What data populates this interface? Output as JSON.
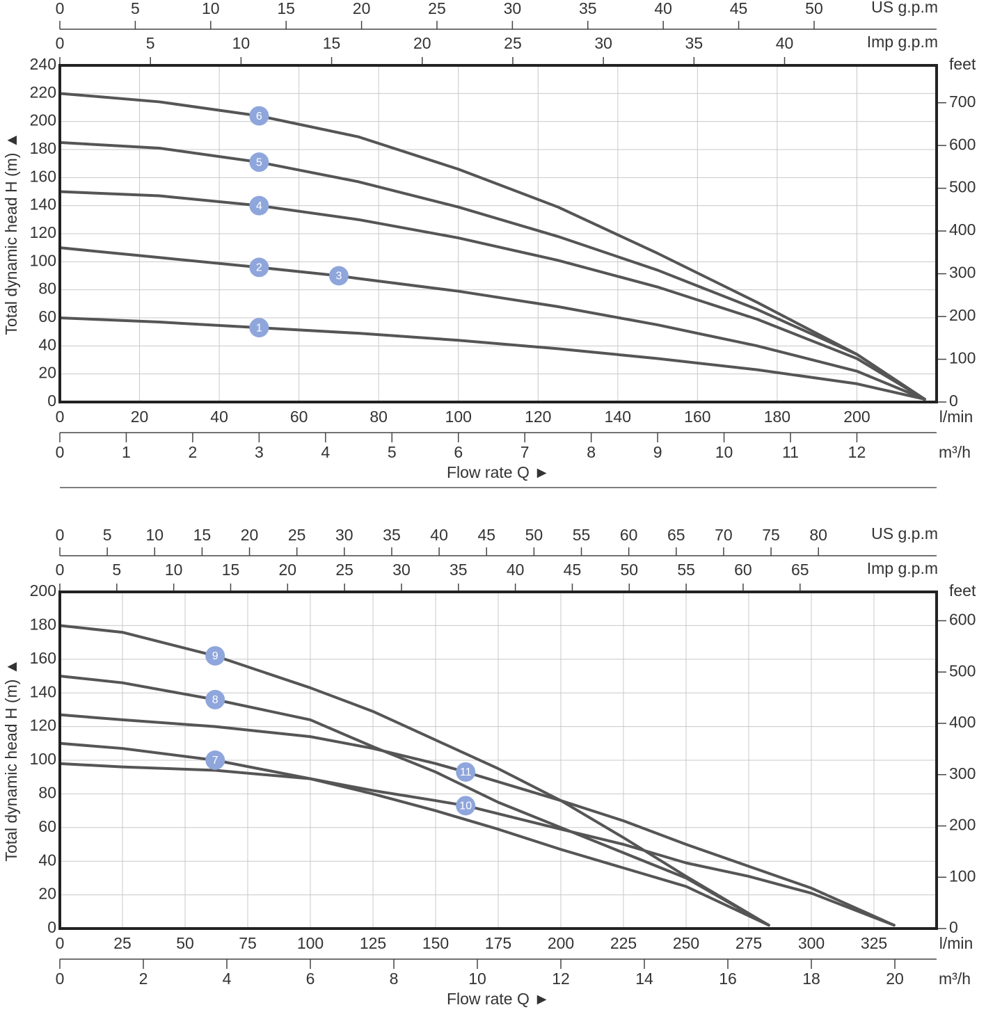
{
  "chart_data": [
    {
      "type": "line",
      "y_label": "Total dynamic head H (m) ▲",
      "x_label": "Flow rate Q ►",
      "xlim": [
        0,
        220
      ],
      "xticks": [
        0,
        20,
        40,
        60,
        80,
        100,
        120,
        140,
        160,
        180,
        200
      ],
      "x_unit": "l/min",
      "x2lim": [
        0,
        13.2
      ],
      "x2ticks": [
        0,
        1,
        2,
        3,
        4,
        5,
        6,
        7,
        8,
        9,
        10,
        11,
        12
      ],
      "x2_unit": "m³/h",
      "x3lim": [
        0,
        58.12
      ],
      "x3ticks": [
        0,
        5,
        10,
        15,
        20,
        25,
        30,
        35,
        40,
        45,
        50
      ],
      "x3_unit": "US g.p.m",
      "x4lim": [
        0,
        48.39
      ],
      "x4ticks": [
        0,
        5,
        10,
        15,
        20,
        25,
        30,
        35,
        40
      ],
      "x4_unit": "Imp g.p.m",
      "ylim": [
        0,
        240
      ],
      "yticks": [
        0,
        20,
        40,
        60,
        80,
        100,
        120,
        140,
        160,
        180,
        200,
        220,
        240
      ],
      "y2lim": [
        0,
        787.4
      ],
      "y2ticks": [
        0,
        100,
        200,
        300,
        400,
        500,
        600,
        700
      ],
      "y2_unit": "feet",
      "grid": true,
      "marker_color": "#8fa6dc",
      "series": [
        {
          "color": "#555555",
          "x": [
            0,
            25,
            50,
            75,
            100,
            125,
            150,
            175,
            200,
            217
          ],
          "values": [
            60,
            57,
            53,
            49,
            44,
            38,
            31,
            23,
            13,
            2
          ]
        },
        {
          "color": "#555555",
          "x": [
            0,
            25,
            50,
            70,
            75,
            100,
            125,
            150,
            175,
            200,
            217
          ],
          "values": [
            110,
            103,
            96,
            90,
            88,
            79,
            68,
            55,
            40,
            22,
            2
          ]
        },
        {
          "color": "#555555",
          "x": [
            0,
            25,
            50,
            75,
            100,
            125,
            150,
            175,
            200,
            217
          ],
          "values": [
            150,
            147,
            140,
            130,
            117,
            101,
            82,
            59,
            31,
            2
          ]
        },
        {
          "color": "#555555",
          "x": [
            0,
            25,
            50,
            75,
            100,
            125,
            150,
            175,
            200,
            217
          ],
          "values": [
            185,
            181,
            171,
            157,
            139,
            118,
            94,
            66,
            34,
            2
          ]
        },
        {
          "color": "#555555",
          "x": [
            0,
            25,
            50,
            75,
            100,
            125,
            150,
            175,
            200,
            217
          ],
          "values": [
            220,
            214,
            204,
            189,
            166,
            139,
            106,
            71,
            34,
            2
          ]
        }
      ],
      "markers": [
        {
          "label": "1",
          "x": 50,
          "y": 53
        },
        {
          "label": "2",
          "x": 50,
          "y": 96
        },
        {
          "label": "3",
          "x": 70,
          "y": 90
        },
        {
          "label": "4",
          "x": 50,
          "y": 140
        },
        {
          "label": "5",
          "x": 50,
          "y": 171
        },
        {
          "label": "6",
          "x": 50,
          "y": 204
        }
      ]
    },
    {
      "type": "line",
      "y_label": "Total dynamic head H (m) ▲",
      "x_label": "Flow rate Q ►",
      "xlim": [
        0,
        350
      ],
      "xticks": [
        0,
        25,
        50,
        75,
        100,
        125,
        150,
        175,
        200,
        225,
        250,
        275,
        300,
        325
      ],
      "x_unit": "l/min",
      "x2lim": [
        0,
        21
      ],
      "x2ticks": [
        0,
        2,
        4,
        6,
        8,
        10,
        12,
        14,
        16,
        18,
        20
      ],
      "x2_unit": "m³/h",
      "x3lim": [
        0,
        92.46
      ],
      "x3ticks": [
        0,
        5,
        10,
        15,
        20,
        25,
        30,
        35,
        40,
        45,
        50,
        55,
        60,
        65,
        70,
        75,
        80
      ],
      "x3_unit": "US g.p.m",
      "x4lim": [
        0,
        76.99
      ],
      "x4ticks": [
        0,
        5,
        10,
        15,
        20,
        25,
        30,
        35,
        40,
        45,
        50,
        55,
        60,
        65
      ],
      "x4_unit": "Imp g.p.m",
      "ylim": [
        0,
        200
      ],
      "yticks": [
        0,
        20,
        40,
        60,
        80,
        100,
        120,
        140,
        160,
        180,
        200
      ],
      "y2lim": [
        0,
        656.2
      ],
      "y2ticks": [
        0,
        100,
        200,
        300,
        400,
        500,
        600
      ],
      "y2_unit": "feet",
      "grid": true,
      "marker_color": "#8fa6dc",
      "series": [
        {
          "color": "#555555",
          "x": [
            0,
            25,
            62,
            100,
            125,
            150,
            175,
            200,
            225,
            250,
            283
          ],
          "values": [
            110,
            107,
            100,
            89,
            80,
            70,
            59,
            47,
            36,
            25,
            2
          ]
        },
        {
          "color": "#555555",
          "x": [
            0,
            25,
            62,
            100,
            125,
            150,
            162,
            200,
            225,
            250,
            275,
            300,
            333
          ],
          "values": [
            98,
            96,
            94,
            89,
            82,
            76,
            73,
            59,
            50,
            39,
            31,
            21,
            2
          ]
        },
        {
          "color": "#555555",
          "x": [
            0,
            25,
            62,
            100,
            125,
            150,
            162,
            200,
            225,
            250,
            275,
            300,
            333
          ],
          "values": [
            127,
            124,
            120,
            114,
            107,
            98,
            93,
            76,
            64,
            50,
            37,
            24,
            2
          ]
        },
        {
          "color": "#555555",
          "x": [
            0,
            25,
            62,
            100,
            125,
            150,
            175,
            200,
            225,
            250,
            283
          ],
          "values": [
            150,
            146,
            136,
            124,
            108,
            93,
            75,
            60,
            45,
            30,
            2
          ]
        },
        {
          "color": "#555555",
          "x": [
            0,
            25,
            62,
            100,
            125,
            150,
            175,
            200,
            225,
            250,
            283
          ],
          "values": [
            180,
            176,
            162,
            143,
            129,
            112,
            95,
            76,
            54,
            31,
            2
          ]
        }
      ],
      "markers": [
        {
          "label": "7",
          "x": 62,
          "y": 100
        },
        {
          "label": "8",
          "x": 62,
          "y": 136
        },
        {
          "label": "9",
          "x": 62,
          "y": 162
        },
        {
          "label": "10",
          "x": 162,
          "y": 73
        },
        {
          "label": "11",
          "x": 162,
          "y": 93
        }
      ]
    }
  ]
}
